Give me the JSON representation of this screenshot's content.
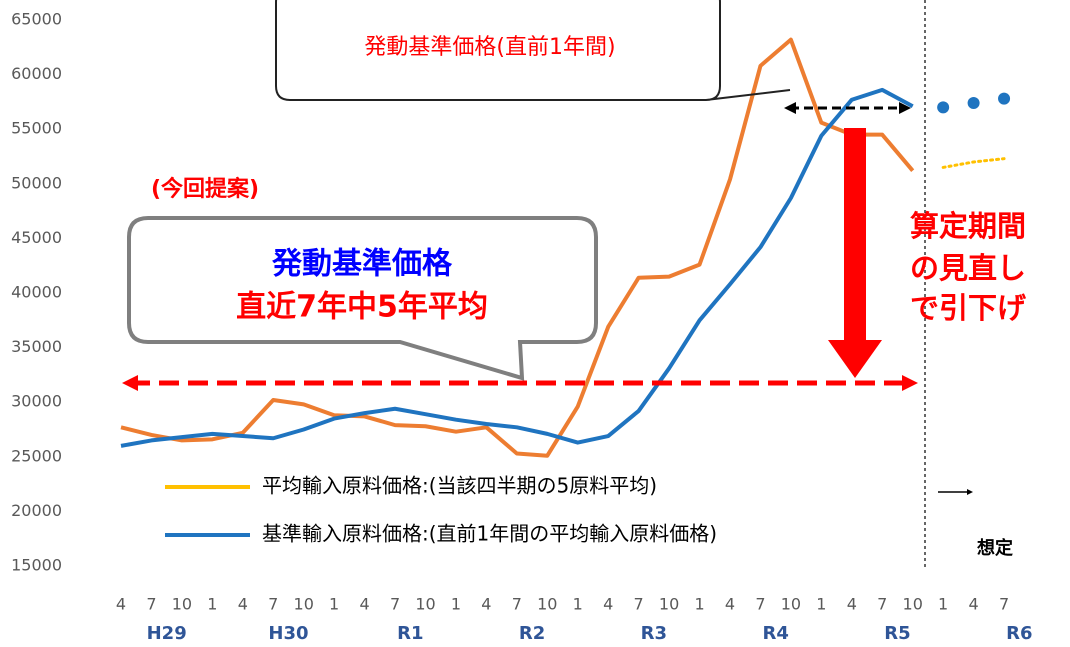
{
  "chart_data": {
    "type": "line",
    "categories": [
      "4",
      "7",
      "10",
      "1",
      "4",
      "7",
      "10",
      "1",
      "4",
      "7",
      "10",
      "1",
      "4",
      "7",
      "10",
      "1",
      "4",
      "7",
      "10",
      "1",
      "4",
      "7",
      "10",
      "1",
      "4",
      "7",
      "10",
      "1",
      "4",
      "7"
    ],
    "fiscal_years": [
      "H29",
      "H30",
      "R1",
      "R2",
      "R3",
      "R4",
      "R5",
      "R6"
    ],
    "series": [
      {
        "name": "平均輸入原料価格:(当該四半期の5原料平均)",
        "color": "#ed7d31",
        "values": [
          27700,
          27000,
          26500,
          26600,
          27200,
          30200,
          29800,
          28800,
          28700,
          27900,
          27800,
          27300,
          27700,
          25300,
          25100,
          29600,
          36900,
          41400,
          41500,
          42600,
          50400,
          60800,
          63200,
          55600,
          54500,
          54500,
          51200,
          null,
          null,
          null
        ],
        "projected_values": [
          null,
          null,
          null,
          null,
          null,
          null,
          null,
          null,
          null,
          null,
          null,
          null,
          null,
          null,
          null,
          null,
          null,
          null,
          null,
          null,
          null,
          null,
          null,
          null,
          null,
          null,
          null,
          51500,
          52000,
          52300
        ]
      },
      {
        "name": "基準輸入原料価格:(直前1年間の平均輸入原料価格)",
        "color": "#1f74c0",
        "values": [
          26000,
          26500,
          26800,
          27100,
          26900,
          26700,
          27500,
          28500,
          29000,
          29400,
          28900,
          28400,
          28000,
          27700,
          27100,
          26300,
          26900,
          29200,
          33100,
          37500,
          40800,
          44200,
          48700,
          54400,
          57700,
          58600,
          57100,
          null,
          null,
          null
        ],
        "projected_values": [
          null,
          null,
          null,
          null,
          null,
          null,
          null,
          null,
          null,
          null,
          null,
          null,
          null,
          null,
          null,
          null,
          null,
          null,
          null,
          null,
          null,
          null,
          null,
          null,
          null,
          null,
          null,
          57000,
          57400,
          57800
        ]
      }
    ],
    "ylim": [
      15000,
      65000
    ],
    "yticks": [
      15000,
      20000,
      25000,
      30000,
      35000,
      40000,
      45000,
      50000,
      55000,
      60000,
      65000
    ],
    "annotations": {
      "callout_top": "発動基準価格(直前1年間)",
      "proposal": "(今回提案)",
      "callout_main_1": "発動基準価格",
      "callout_main_2": "直近7年中5年平均",
      "note_1": "算定期間",
      "note_2": "の見直し",
      "note_3": "で引下げ",
      "assumed": "想定"
    }
  }
}
